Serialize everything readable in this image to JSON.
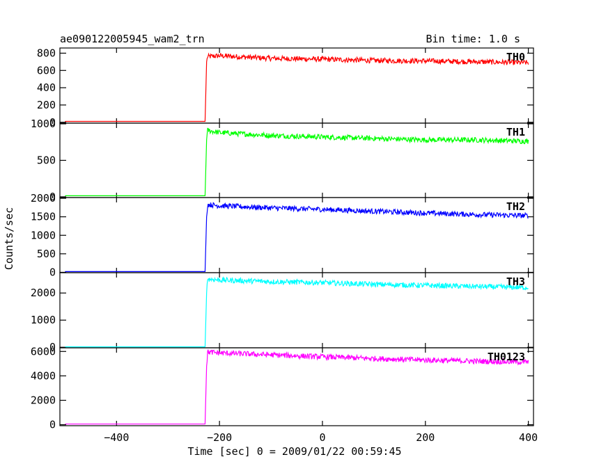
{
  "chart_data": {
    "type": "line",
    "title": "ae090122005945_wam2_trn",
    "subtitle": "Bin time: 1.0 s",
    "xlabel": "Time [sec] 0 = 2009/01/22 00:59:45",
    "ylabel": "Counts/sec",
    "xlim": [
      -510,
      410
    ],
    "xticks": [
      -400,
      -200,
      0,
      200,
      400
    ],
    "xtick_labels": [
      "−400",
      "−200",
      "0",
      "200",
      "400"
    ],
    "grid": false,
    "panels": [
      {
        "name": "TH0",
        "color": "#ff0000",
        "ylim": [
          -10,
          860
        ],
        "yticks": [
          0,
          200,
          400,
          600,
          800
        ],
        "ytick_labels": [
          "0",
          "200",
          "400",
          "600",
          "800"
        ],
        "x": [
          -500,
          -228,
          -225,
          -223,
          -200,
          -100,
          0,
          100,
          200,
          300,
          400
        ],
        "y": [
          10,
          10,
          700,
          760,
          770,
          740,
          730,
          715,
          710,
          700,
          690
        ]
      },
      {
        "name": "TH1",
        "color": "#00ff00",
        "ylim": [
          -10,
          1010
        ],
        "yticks": [
          0,
          500,
          1000
        ],
        "ytick_labels": [
          "0",
          "500",
          "1000"
        ],
        "x": [
          -500,
          -228,
          -225,
          -223,
          -200,
          -100,
          0,
          100,
          200,
          300,
          400
        ],
        "y": [
          15,
          15,
          780,
          910,
          880,
          840,
          820,
          800,
          780,
          780,
          760
        ]
      },
      {
        "name": "TH2",
        "color": "#0000ff",
        "ylim": [
          -10,
          2020
        ],
        "yticks": [
          0,
          500,
          1000,
          1500,
          2000
        ],
        "ytick_labels": [
          "0",
          "500",
          "1000",
          "1500",
          "2000"
        ],
        "x": [
          -500,
          -228,
          -225,
          -223,
          -200,
          -100,
          0,
          100,
          200,
          300,
          400
        ],
        "y": [
          20,
          20,
          1500,
          1830,
          1800,
          1740,
          1700,
          1650,
          1600,
          1560,
          1530
        ]
      },
      {
        "name": "TH3",
        "color": "#00ffff",
        "ylim": [
          -20,
          2750
        ],
        "yticks": [
          0,
          1000,
          2000
        ],
        "ytick_labels": [
          "0",
          "1000",
          "2000"
        ],
        "x": [
          -500,
          -228,
          -225,
          -223,
          -200,
          -100,
          0,
          100,
          200,
          300,
          400
        ],
        "y": [
          15,
          15,
          2000,
          2520,
          2480,
          2420,
          2380,
          2320,
          2280,
          2240,
          2200
        ]
      },
      {
        "name": "TH0123",
        "color": "#ff00ff",
        "ylim": [
          -80,
          6300
        ],
        "yticks": [
          0,
          2000,
          4000,
          6000
        ],
        "ytick_labels": [
          "0",
          "2000",
          "4000",
          "6000"
        ],
        "x": [
          -500,
          -228,
          -225,
          -223,
          -200,
          -100,
          0,
          100,
          200,
          300,
          400
        ],
        "y": [
          60,
          60,
          4800,
          5950,
          5880,
          5720,
          5560,
          5420,
          5300,
          5200,
          5130
        ]
      }
    ]
  }
}
